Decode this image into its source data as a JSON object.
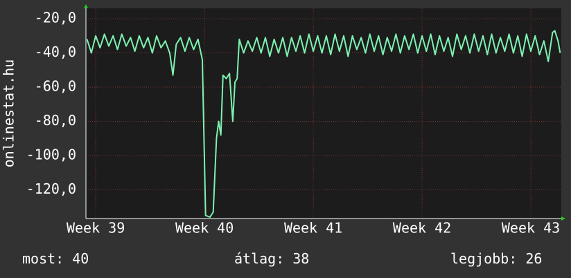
{
  "chart_data": {
    "type": "line",
    "y_label": "onlinestat.hu",
    "xlim": [
      38.91,
      43.28
    ],
    "ylim": [
      -136.8,
      -13.9
    ],
    "xticks": [
      {
        "value": 39,
        "label": "Week 39"
      },
      {
        "value": 40,
        "label": "Week 40"
      },
      {
        "value": 41,
        "label": "Week 41"
      },
      {
        "value": 42,
        "label": "Week 42"
      },
      {
        "value": 43,
        "label": "Week 43"
      }
    ],
    "yticks": [
      {
        "value": -20,
        "label": "-20,0"
      },
      {
        "value": -40,
        "label": "-40,0"
      },
      {
        "value": -60,
        "label": "-60,0"
      },
      {
        "value": -80,
        "label": "-80,0"
      },
      {
        "value": -100,
        "label": "-100,0"
      },
      {
        "value": -120,
        "label": "-120,0"
      }
    ],
    "grid": true,
    "series": [
      {
        "color": "#7df2b0",
        "x": [
          38.92,
          38.96,
          39.0,
          39.04,
          39.08,
          39.12,
          39.16,
          39.2,
          39.24,
          39.28,
          39.32,
          39.36,
          39.4,
          39.44,
          39.48,
          39.52,
          39.56,
          39.6,
          39.64,
          39.68,
          39.71,
          39.74,
          39.78,
          39.82,
          39.86,
          39.9,
          39.94,
          39.98,
          40.01,
          40.05,
          40.08,
          40.11,
          40.13,
          40.15,
          40.17,
          40.2,
          40.23,
          40.26,
          40.28,
          40.3,
          40.32,
          40.36,
          40.4,
          40.44,
          40.48,
          40.52,
          40.56,
          40.6,
          40.64,
          40.68,
          40.72,
          40.76,
          40.8,
          40.84,
          40.88,
          40.92,
          40.96,
          41.0,
          41.04,
          41.08,
          41.12,
          41.16,
          41.2,
          41.24,
          41.28,
          41.32,
          41.36,
          41.4,
          41.44,
          41.48,
          41.52,
          41.56,
          41.6,
          41.64,
          41.68,
          41.72,
          41.76,
          41.8,
          41.84,
          41.88,
          41.92,
          41.96,
          42.0,
          42.04,
          42.08,
          42.12,
          42.16,
          42.2,
          42.24,
          42.28,
          42.32,
          42.36,
          42.4,
          42.44,
          42.48,
          42.52,
          42.56,
          42.6,
          42.64,
          42.68,
          42.72,
          42.76,
          42.8,
          42.84,
          42.88,
          42.92,
          42.96,
          43.0,
          43.04,
          43.08,
          43.12,
          43.16,
          43.2,
          43.22,
          43.25,
          43.27
        ],
        "values": [
          -32,
          -40,
          -30,
          -37,
          -29,
          -36,
          -30,
          -38,
          -29,
          -36,
          -31,
          -39,
          -30,
          -37,
          -31,
          -40,
          -30,
          -37,
          -33,
          -40,
          -53,
          -35,
          -31,
          -39,
          -31,
          -38,
          -32,
          -44,
          -135,
          -136,
          -133,
          -90,
          -80,
          -88,
          -53,
          -55,
          -52,
          -80,
          -57,
          -55,
          -32,
          -40,
          -33,
          -39,
          -31,
          -40,
          -31,
          -42,
          -32,
          -40,
          -31,
          -42,
          -31,
          -39,
          -30,
          -40,
          -29,
          -39,
          -30,
          -40,
          -30,
          -41,
          -29,
          -39,
          -30,
          -42,
          -30,
          -38,
          -31,
          -40,
          -29,
          -39,
          -30,
          -41,
          -31,
          -39,
          -29,
          -40,
          -30,
          -38,
          -29,
          -40,
          -30,
          -39,
          -29,
          -41,
          -30,
          -39,
          -31,
          -42,
          -29,
          -38,
          -30,
          -40,
          -29,
          -39,
          -30,
          -41,
          -29,
          -40,
          -31,
          -39,
          -29,
          -40,
          -30,
          -42,
          -29,
          -39,
          -30,
          -41,
          -33,
          -45,
          -28,
          -27,
          -33,
          -40
        ]
      }
    ],
    "stats": [
      {
        "label": "most:",
        "value": 40
      },
      {
        "label": "átlag:",
        "value": 38
      },
      {
        "label": "legjobb:",
        "value": 26
      }
    ]
  }
}
